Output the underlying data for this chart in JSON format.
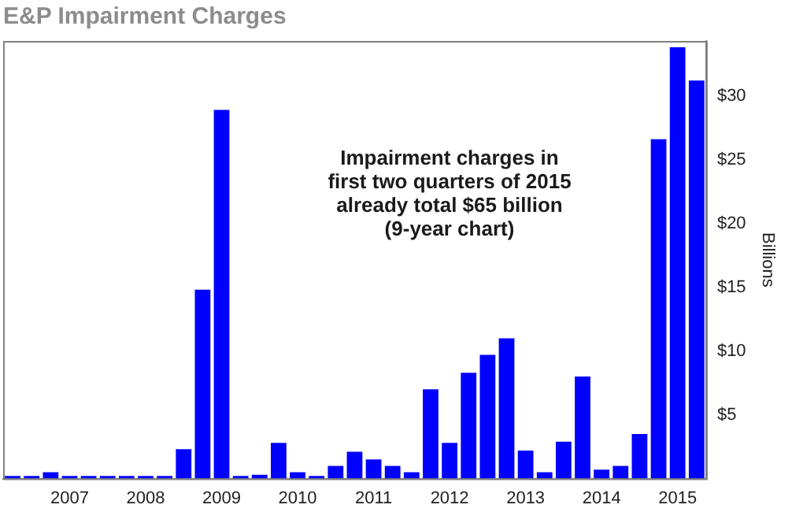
{
  "chart_data": {
    "type": "bar",
    "title": "E&P Impairment Charges",
    "ylabel": "Billions",
    "annotations": [
      "Impairment charges in\nfirst two quarters of 2015\nalready total $65 billion\n(9-year chart)"
    ],
    "categories": [
      null,
      null,
      null,
      "2007",
      null,
      null,
      null,
      "2008",
      null,
      null,
      null,
      "2009",
      null,
      null,
      null,
      "2010",
      null,
      null,
      null,
      "2011",
      null,
      null,
      null,
      "2012",
      null,
      null,
      null,
      "2013",
      null,
      null,
      null,
      "2014",
      null,
      null,
      null,
      "2015",
      null
    ],
    "values": [
      0.2,
      0.2,
      0.5,
      0.2,
      0.2,
      0.2,
      0.2,
      0.2,
      0.2,
      2.3,
      14.8,
      28.9,
      0.2,
      0.3,
      2.8,
      0.5,
      0.2,
      1.0,
      2.1,
      1.5,
      1.0,
      0.5,
      7.0,
      2.8,
      8.3,
      9.7,
      11.0,
      2.2,
      0.5,
      2.9,
      8.0,
      0.7,
      1.0,
      3.5,
      26.6,
      33.8,
      31.2
    ],
    "color": "#0000ff",
    "ylim": [
      0,
      34.3
    ],
    "yticks": [
      {
        "value": 5,
        "label": "$5"
      },
      {
        "value": 10,
        "label": "$10"
      },
      {
        "value": 15,
        "label": "$15"
      },
      {
        "value": 20,
        "label": "$20"
      },
      {
        "value": 25,
        "label": "$25"
      },
      {
        "value": 30,
        "label": "$30"
      }
    ],
    "grid": false,
    "legend": false
  }
}
